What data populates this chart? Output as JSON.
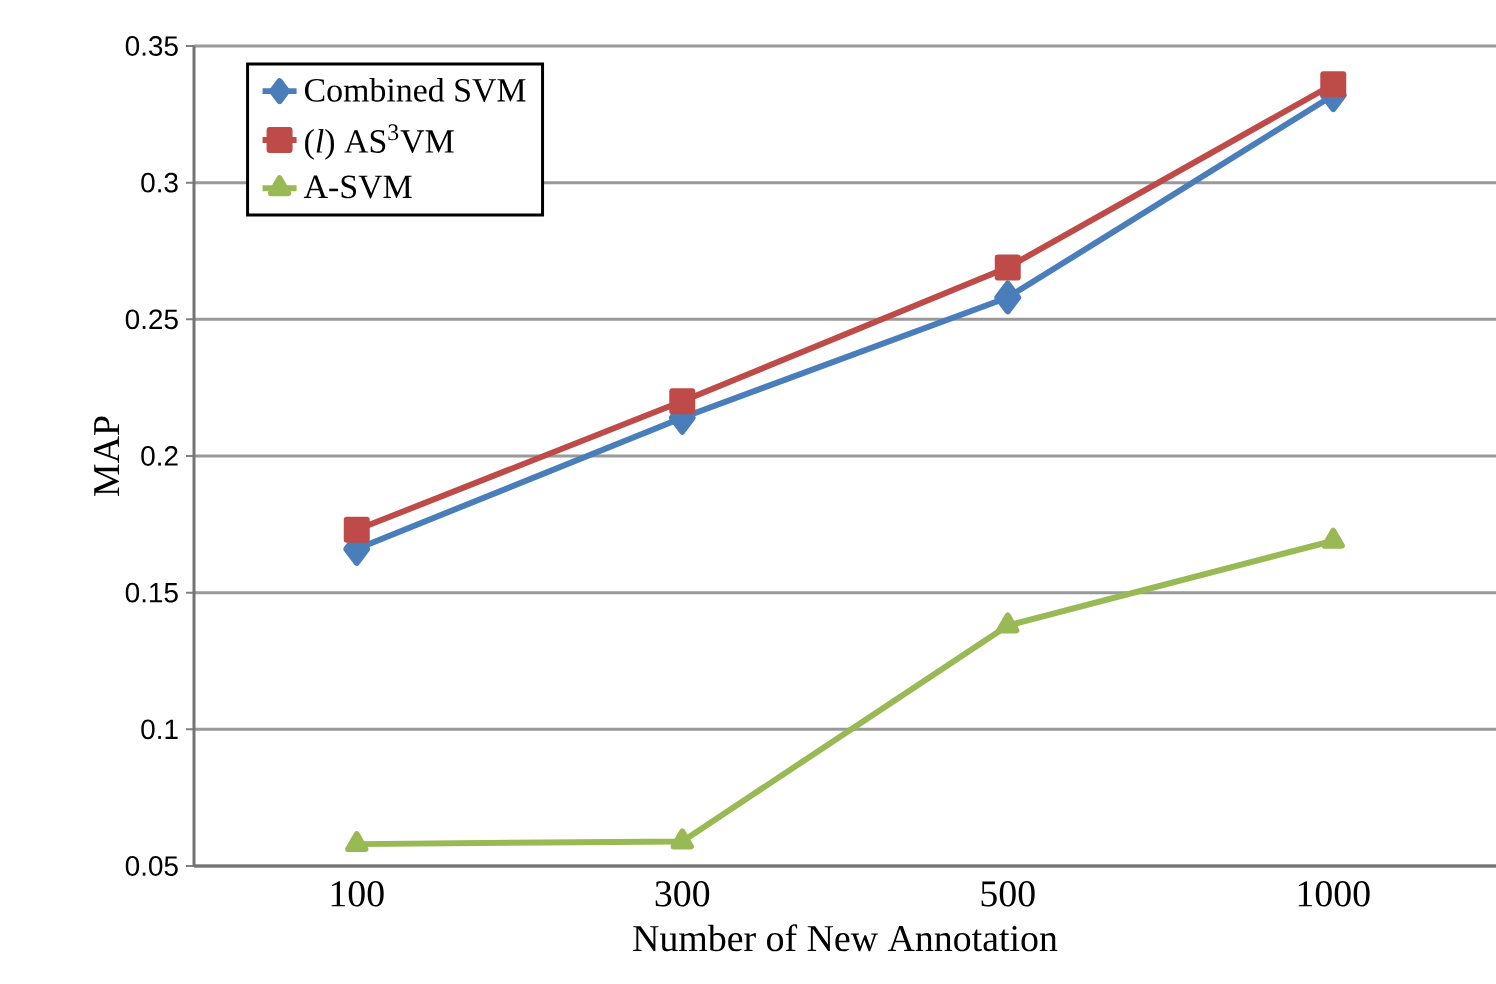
{
  "chart_data": {
    "type": "line",
    "xlabel": "Number of New Annotation",
    "ylabel": "MAP",
    "categories": [
      "100",
      "300",
      "500",
      "1000"
    ],
    "series": [
      {
        "name": "Combined SVM",
        "color": "#4a7ebb",
        "marker": "diamond",
        "values": [
          0.166,
          0.214,
          0.258,
          0.332
        ]
      },
      {
        "name": "(*l*) AS$^{3}$VM",
        "color": "#be4b48",
        "marker": "square",
        "values": [
          0.173,
          0.22,
          0.269,
          0.336
        ]
      },
      {
        "name": "A-SVM",
        "color": "#98b954",
        "marker": "triangle",
        "values": [
          0.058,
          0.059,
          0.138,
          0.169
        ]
      }
    ],
    "ylim": [
      0.05,
      0.35
    ],
    "yticks": [
      0.05,
      0.1,
      0.15,
      0.2,
      0.25,
      0.3,
      0.35
    ],
    "grid": "y",
    "legend": "top left",
    "line_style": "solid"
  }
}
